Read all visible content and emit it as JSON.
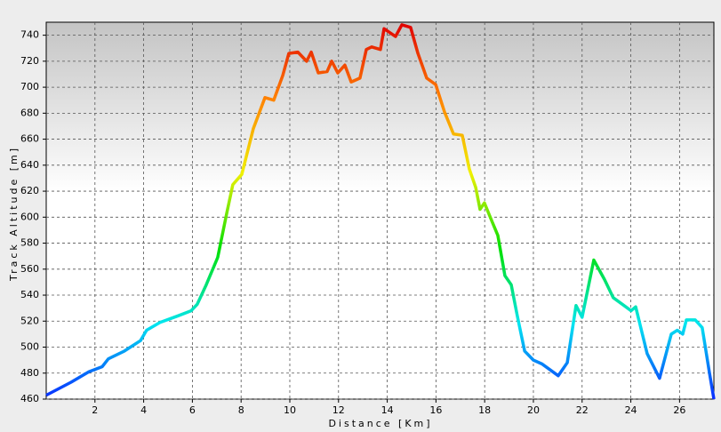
{
  "chart_data": {
    "type": "line",
    "x_label": "Distance [Km]",
    "y_label": "Track Altitude [m]",
    "x": [
      0,
      1.02,
      1.75,
      2.3,
      2.55,
      3.21,
      3.87,
      4.12,
      4.67,
      5.4,
      5.95,
      6.2,
      6.57,
      7.04,
      7.41,
      7.66,
      8.03,
      8.5,
      8.98,
      9.34,
      9.71,
      9.96,
      10.33,
      10.69,
      10.88,
      11.17,
      11.53,
      11.72,
      11.97,
      12.26,
      12.52,
      12.88,
      13.14,
      13.36,
      13.72,
      13.87,
      14.34,
      14.6,
      14.96,
      15.26,
      15.62,
      15.99,
      16.35,
      16.72,
      17.08,
      17.37,
      17.63,
      17.81,
      17.99,
      18.25,
      18.54,
      18.83,
      19.09,
      19.34,
      19.64,
      20.0,
      20.36,
      21.02,
      21.39,
      21.75,
      22.0,
      22.48,
      22.92,
      23.28,
      23.65,
      24.01,
      24.2,
      24.67,
      25.18,
      25.66,
      25.91,
      26.13,
      26.28,
      26.64,
      26.93,
      27.23,
      27.41
    ],
    "series": [
      {
        "values": [
          463,
          473,
          481,
          485,
          491,
          497,
          505,
          513,
          519,
          524,
          528,
          533,
          548,
          569,
          603,
          625,
          633,
          668,
          692,
          690,
          709,
          726,
          727,
          720,
          727,
          711,
          712,
          720,
          711,
          717,
          704,
          707,
          729,
          731,
          729,
          745,
          739,
          748,
          746,
          726,
          707,
          702,
          681,
          664,
          663,
          637,
          623,
          606,
          611,
          599,
          586,
          555,
          548,
          524,
          497,
          490,
          487,
          478,
          488,
          532,
          523,
          567,
          552,
          538,
          533,
          528,
          531,
          495,
          476,
          510,
          513,
          510,
          521,
          521,
          515,
          480,
          460
        ]
      }
    ],
    "color_scale": [
      "#0a2cff",
      "#00e5f0",
      "#00e000",
      "#f0f000",
      "#ff8000",
      "#e00000"
    ],
    "xlim": [
      0,
      27.41
    ],
    "ylim": [
      460,
      750
    ],
    "xticks": [
      2,
      4,
      6,
      8,
      10,
      12,
      14,
      16,
      18,
      20,
      22,
      24,
      26
    ],
    "yticks": [
      460,
      480,
      500,
      520,
      540,
      560,
      580,
      600,
      620,
      640,
      660,
      680,
      700,
      720,
      740
    ],
    "grid": true
  }
}
